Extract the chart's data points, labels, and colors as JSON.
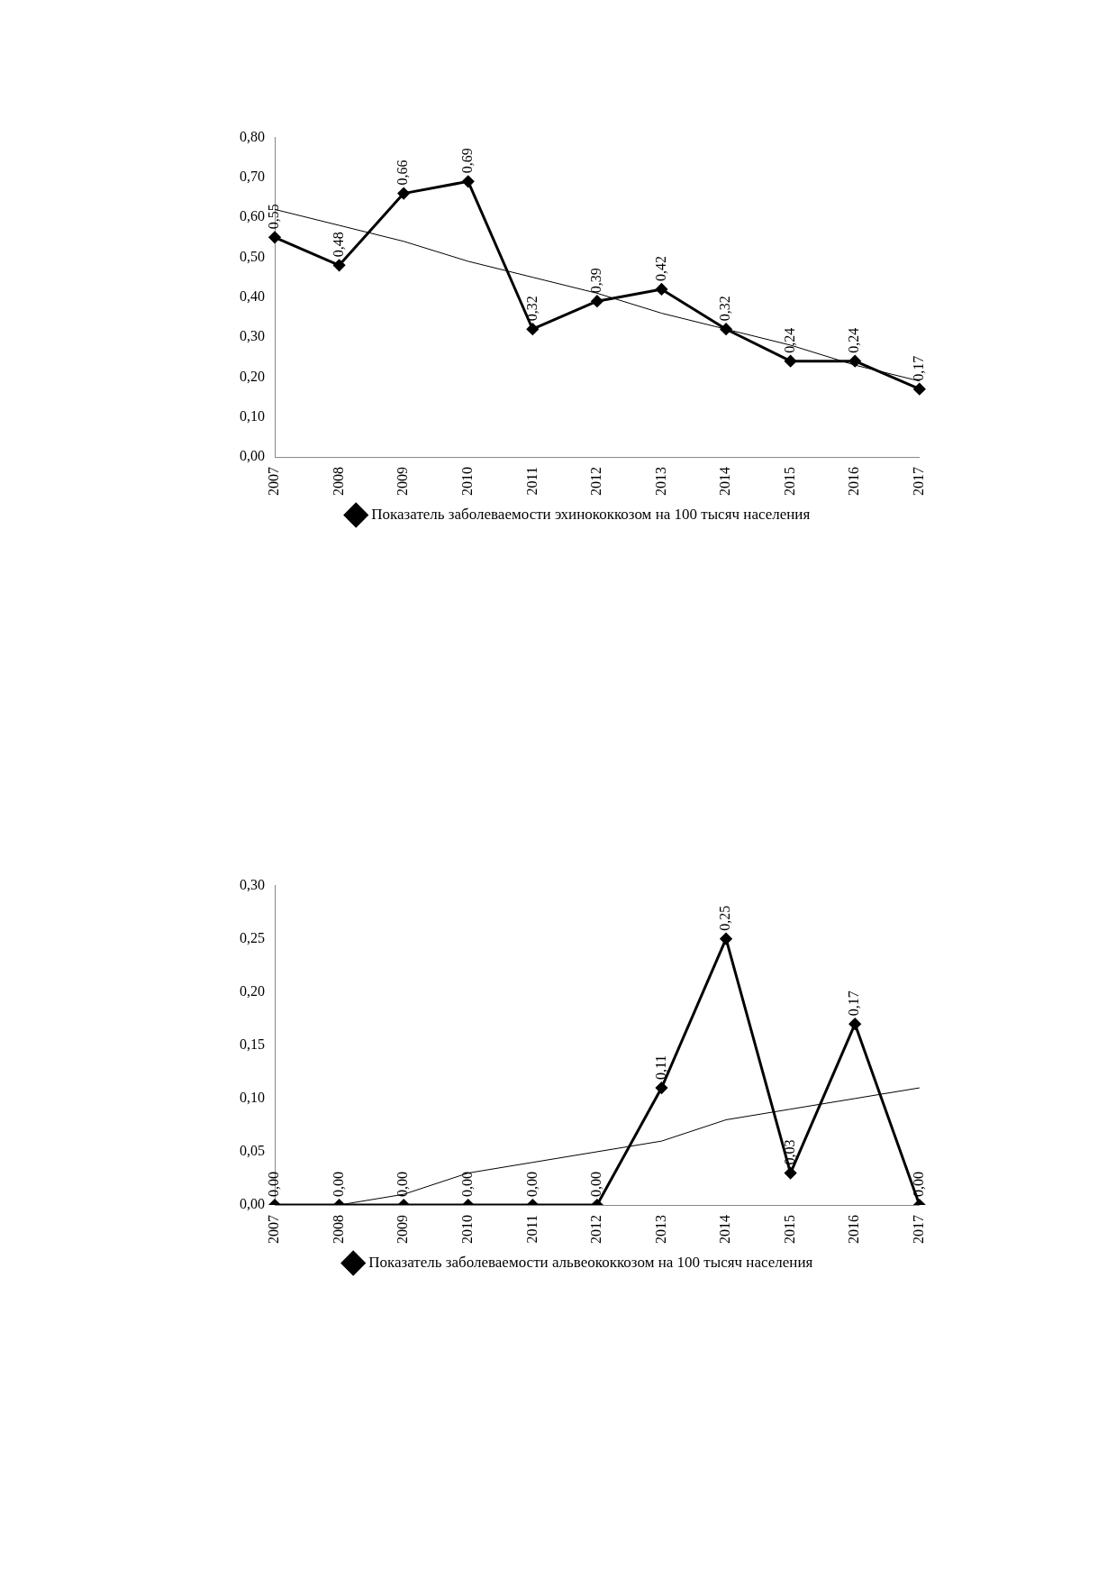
{
  "chart_data": [
    {
      "type": "line",
      "categories": [
        "2007",
        "2008",
        "2009",
        "2010",
        "2011",
        "2012",
        "2013",
        "2014",
        "2015",
        "2016",
        "2017"
      ],
      "ylim": [
        0,
        0.8
      ],
      "yticks": [
        {
          "value": 0,
          "label": "0,00"
        },
        {
          "value": 0.1,
          "label": "0,10"
        },
        {
          "value": 0.2,
          "label": "0,20"
        },
        {
          "value": 0.3,
          "label": "0,30"
        },
        {
          "value": 0.4,
          "label": "0,40"
        },
        {
          "value": 0.5,
          "label": "0,50"
        },
        {
          "value": 0.6,
          "label": "0,60"
        },
        {
          "value": 0.7,
          "label": "0,70"
        },
        {
          "value": 0.8,
          "label": "0,80"
        }
      ],
      "grid": false,
      "legend": "bottom",
      "series": [
        {
          "name": "Показатель заболеваемости эхинококкозом на 100 тысяч населения",
          "color": "#000000",
          "marker": "diamond",
          "values": [
            0.55,
            0.48,
            0.66,
            0.69,
            0.32,
            0.39,
            0.42,
            0.32,
            0.24,
            0.24,
            0.17
          ],
          "value_labels": [
            "0,55",
            "0,48",
            "0,66",
            "0,69",
            "0,32",
            "0,39",
            "0,42",
            "0,32",
            "0,24",
            "0,24",
            "0,17"
          ]
        },
        {
          "type": "line",
          "color": "#000000",
          "marker": "none",
          "values": [
            0.62,
            0.58,
            0.54,
            0.49,
            0.45,
            0.41,
            0.36,
            0.32,
            0.28,
            0.23,
            0.19
          ]
        }
      ]
    },
    {
      "type": "line",
      "categories": [
        "2007",
        "2008",
        "2009",
        "2010",
        "2011",
        "2012",
        "2013",
        "2014",
        "2015",
        "2016",
        "2017"
      ],
      "ylim": [
        0,
        0.3
      ],
      "yticks": [
        {
          "value": 0,
          "label": "0,00"
        },
        {
          "value": 0.05,
          "label": "0,05"
        },
        {
          "value": 0.1,
          "label": "0,10"
        },
        {
          "value": 0.15,
          "label": "0,15"
        },
        {
          "value": 0.2,
          "label": "0,20"
        },
        {
          "value": 0.25,
          "label": "0,25"
        },
        {
          "value": 0.3,
          "label": "0,30"
        }
      ],
      "grid": false,
      "legend": "bottom",
      "series": [
        {
          "name": "Показатель заболеваемости альвеококкозом на 100 тысяч населения",
          "color": "#000000",
          "marker": "diamond",
          "values": [
            0,
            0,
            0,
            0,
            0,
            0,
            0.11,
            0.25,
            0.03,
            0.17,
            0
          ],
          "value_labels": [
            "0,00",
            "0,00",
            "0,00",
            "0,00",
            "0,00",
            "0,00",
            "0,11",
            "0,25",
            "0,03",
            "0,17",
            "0,00"
          ]
        },
        {
          "type": "line",
          "color": "#000000",
          "marker": "none",
          "values": [
            null,
            0,
            0.01,
            0.03,
            0.04,
            0.05,
            0.06,
            0.08,
            0.09,
            0.1,
            0.11
          ]
        }
      ]
    }
  ]
}
